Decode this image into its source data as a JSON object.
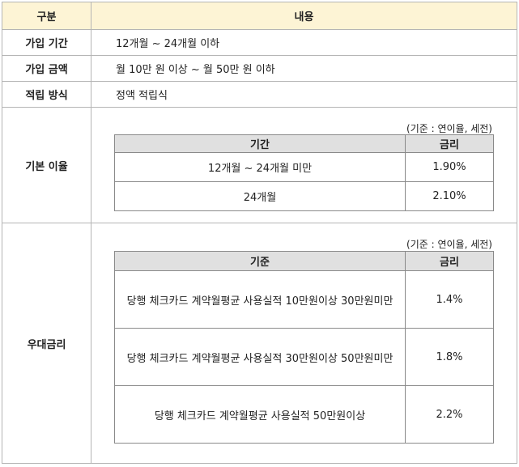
{
  "table": {
    "header": {
      "col1": "구분",
      "col2": "내용"
    },
    "rows": {
      "period": {
        "label": "가입 기간",
        "value": "12개월 ~ 24개월 이하"
      },
      "amount": {
        "label": "가입 금액",
        "value": "월 10만 원 이상 ~ 월 50만 원 이하"
      },
      "method": {
        "label": "적립 방식",
        "value": "정액 적립식"
      }
    },
    "base_rate": {
      "label": "기본 이율",
      "note": "(기준 : 연이율, 세전)",
      "headers": [
        "기간",
        "금리"
      ],
      "rows": [
        {
          "term": "12개월 ~ 24개월 미만",
          "rate": "1.90%"
        },
        {
          "term": "24개월",
          "rate": "2.10%"
        }
      ]
    },
    "preferential": {
      "label": "우대금리",
      "note": "(기준 : 연이율, 세전)",
      "headers": [
        "기준",
        "금리"
      ],
      "rows": [
        {
          "criteria": "당행 체크카드 계약월평균 사용실적 10만원이상 30만원미만",
          "rate": "1.4%"
        },
        {
          "criteria": "당행 체크카드 계약월평균 사용실적 30만원이상 50만원미만",
          "rate": "1.8%"
        },
        {
          "criteria": "당행 체크카드 계약월평균 사용실적 50만원이상",
          "rate": "2.2%"
        }
      ]
    }
  },
  "colors": {
    "header_bg": "#fdf4d5",
    "subheader_bg": "#e0e0e0",
    "border": "#b5b5b5"
  }
}
